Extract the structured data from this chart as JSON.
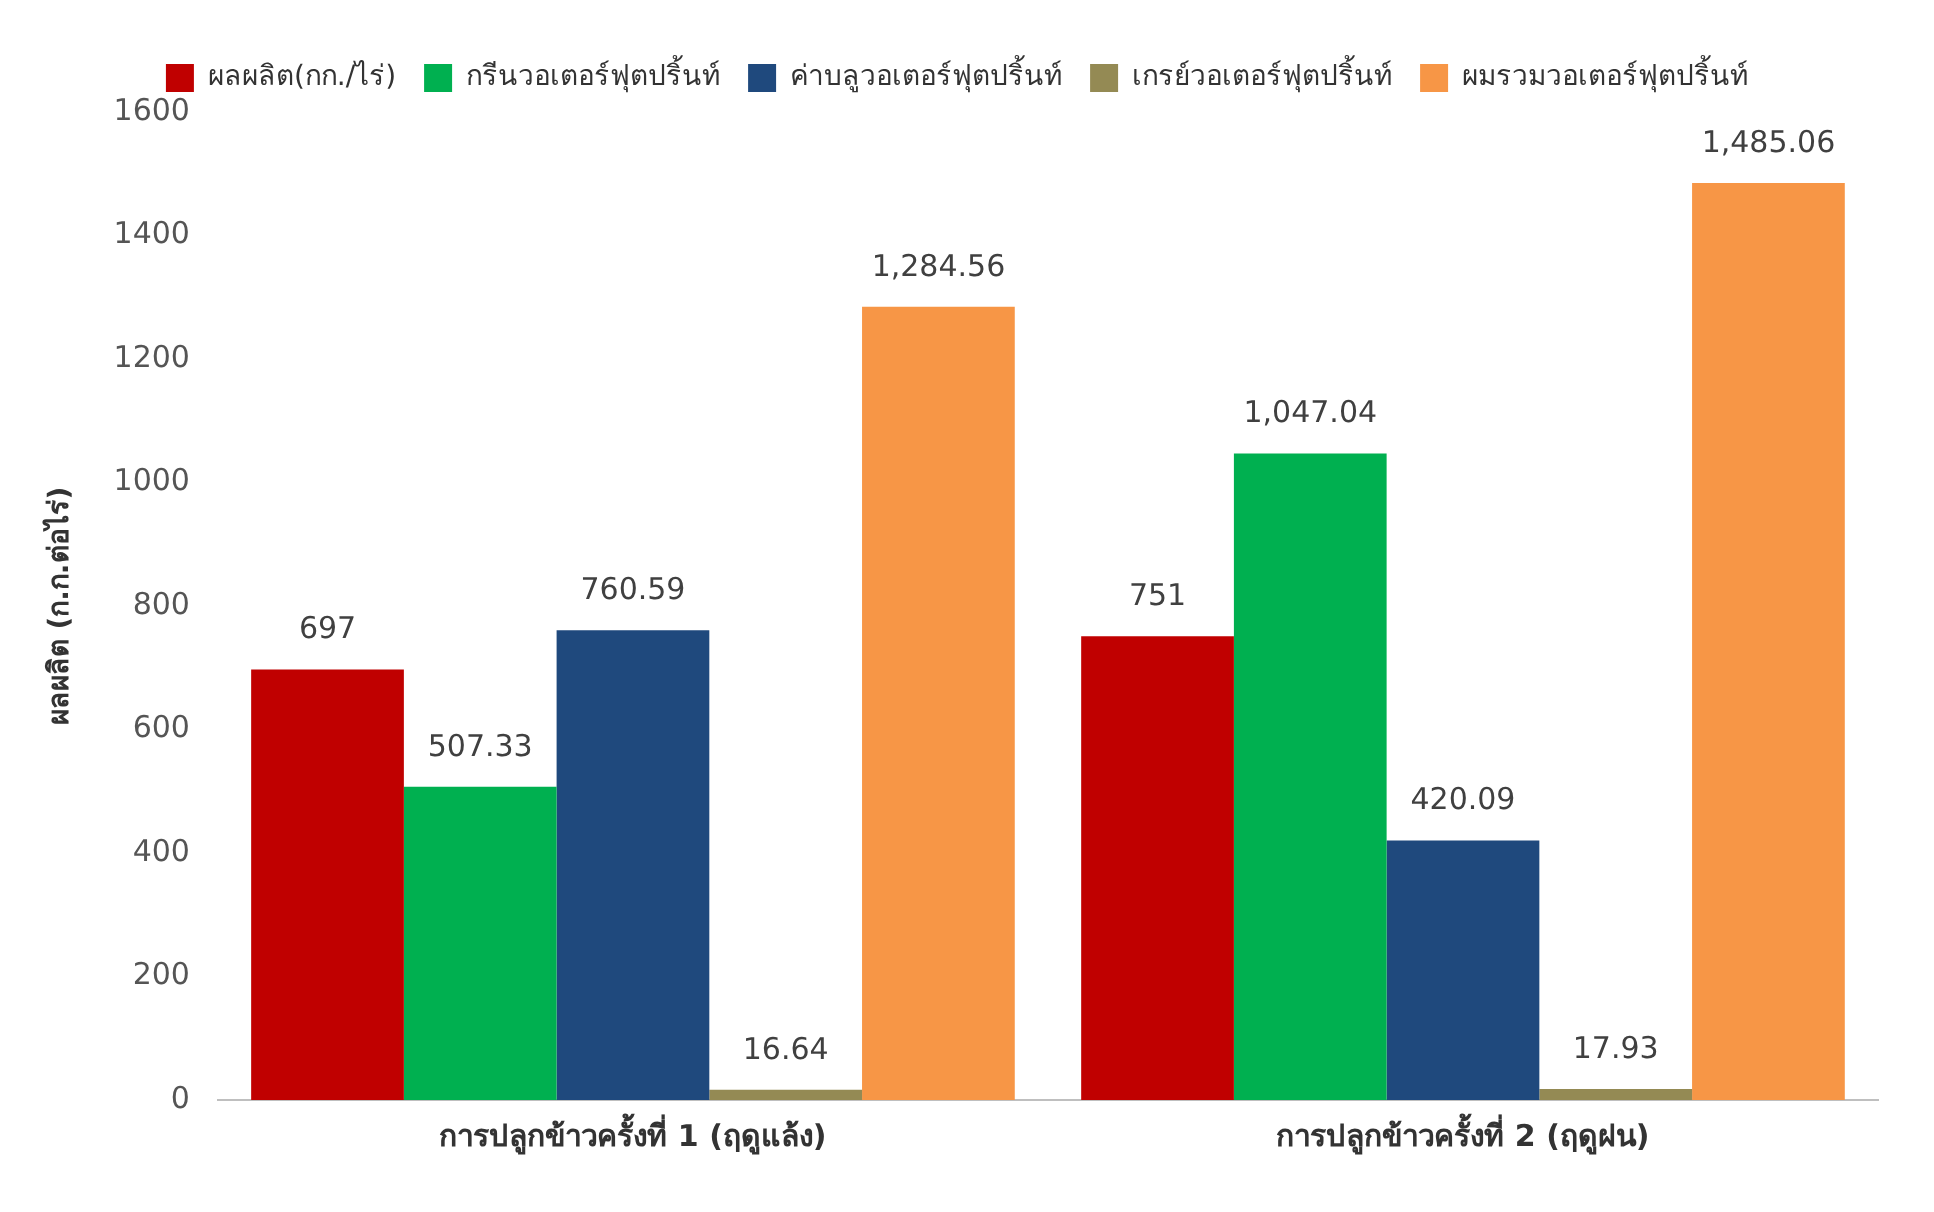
{
  "chart_data": {
    "type": "bar",
    "ylabel": "ผลผลิต (ก.ก.ต่อไร่)",
    "categories": [
      "การปลูกข้าวครั้งที่ 1 (ฤดูแล้ง)",
      "การปลูกข้าวครั้งที่ 2 (ฤดูฝน)"
    ],
    "ylim": [
      0,
      1600
    ],
    "yticks": [
      0,
      200,
      400,
      600,
      800,
      1000,
      1200,
      1400,
      1600
    ],
    "grid": false,
    "legend": "top",
    "series": [
      {
        "name": "ผลผลิต(กก./ไร่)",
        "color": "#c00000",
        "values": [
          697,
          751
        ],
        "value_labels": [
          "697",
          "751"
        ]
      },
      {
        "name": "กรีนวอเตอร์ฟุตปริ้นท์",
        "color": "#00b050",
        "values": [
          507.33,
          1047.04
        ],
        "value_labels": [
          "507.33",
          "1,047.04"
        ]
      },
      {
        "name": "ค่าบลูวอเตอร์ฟุตปริ้นท์",
        "color": "#1f497d",
        "values": [
          760.59,
          420.09
        ],
        "value_labels": [
          "760.59",
          "420.09"
        ]
      },
      {
        "name": "เกรย์วอเตอร์ฟุตปริ้นท์",
        "color": "#948a54",
        "values": [
          16.64,
          17.93
        ],
        "value_labels": [
          "16.64",
          "17.93"
        ]
      },
      {
        "name": "ผมรวมวอเตอร์ฟุตปริ้นท์",
        "color": "#f79646",
        "values": [
          1284.56,
          1485.06
        ],
        "value_labels": [
          "1,284.56",
          "1,485.06"
        ]
      }
    ]
  }
}
